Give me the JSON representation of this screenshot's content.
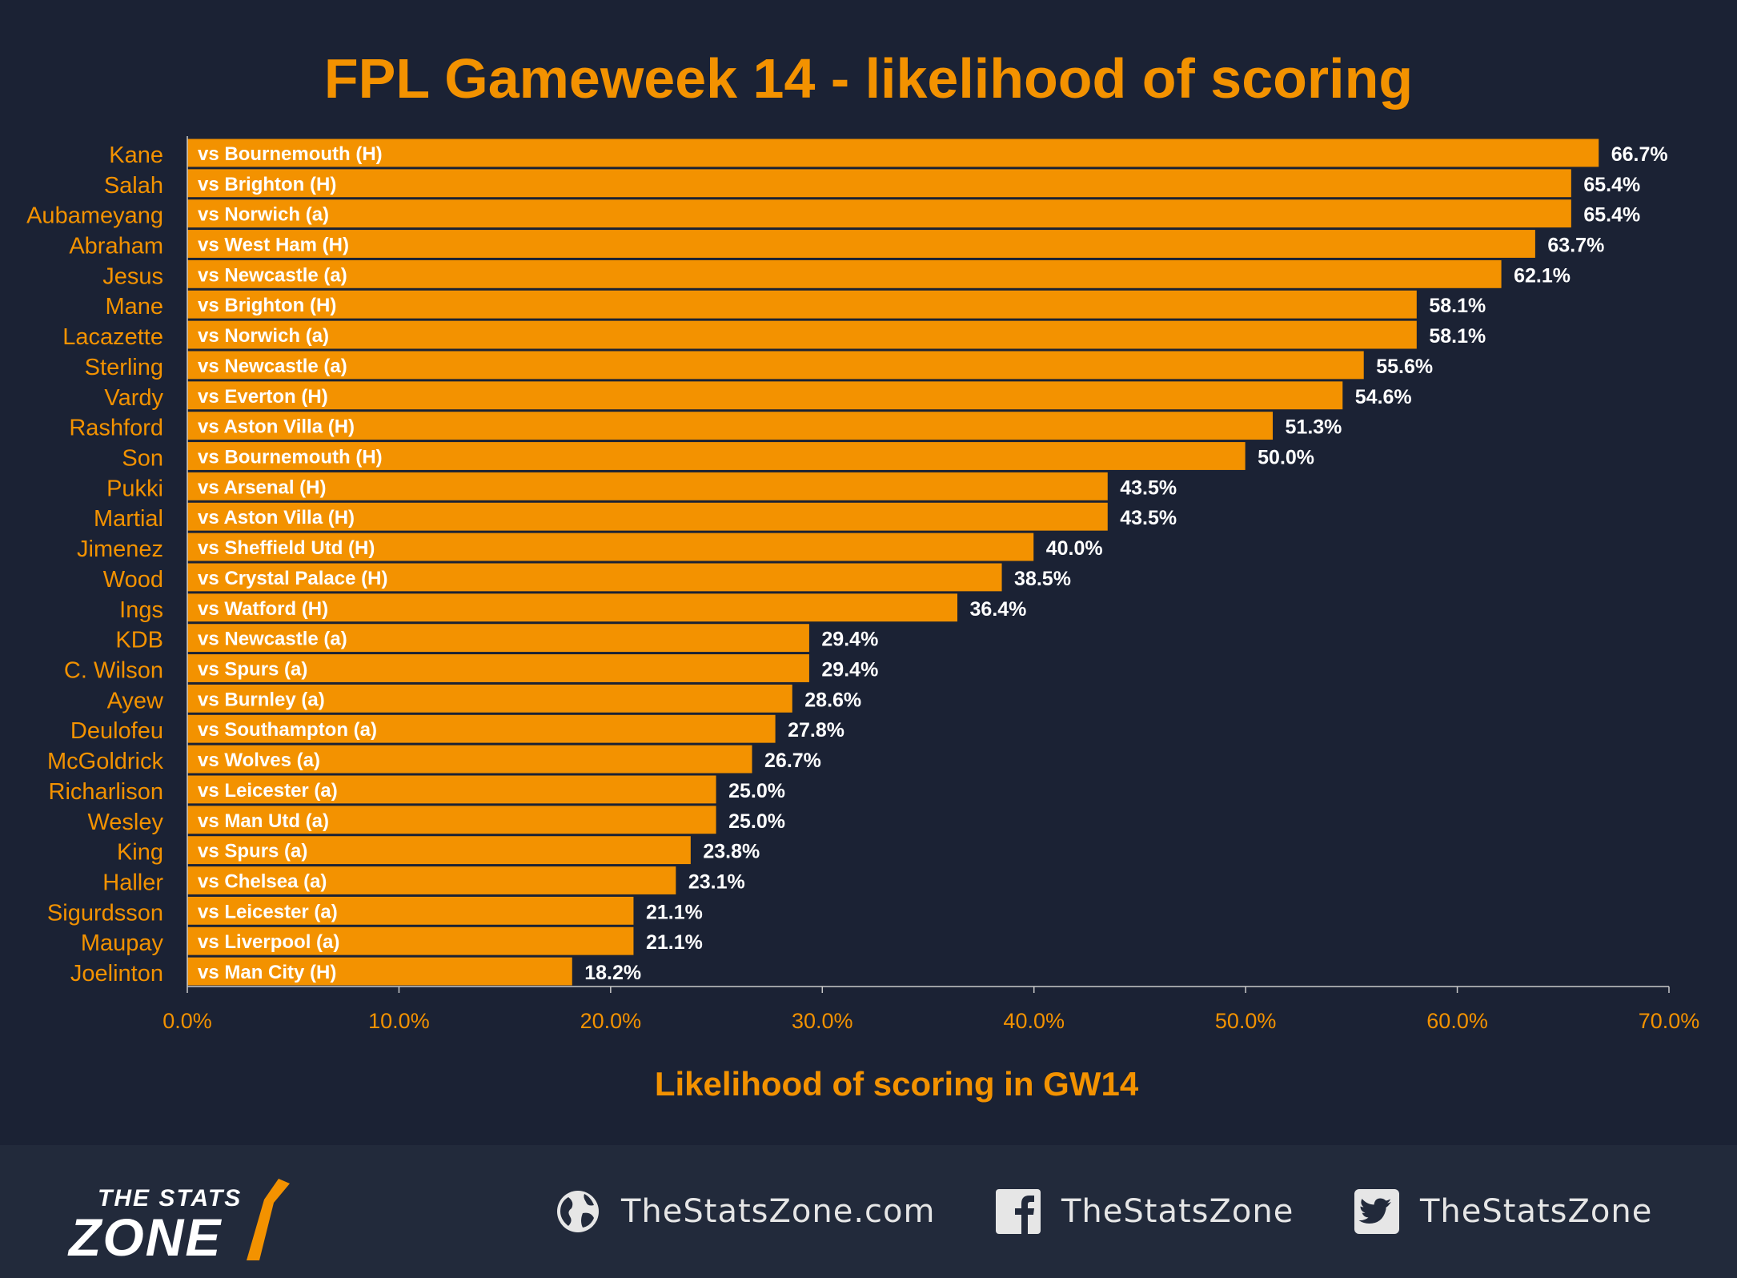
{
  "chart_data": {
    "type": "bar",
    "orientation": "horizontal",
    "title": "FPL Gameweek 14 - likelihood of scoring",
    "xlabel": "Likelihood of scoring in GW14",
    "ylabel": "",
    "xlim": [
      0,
      70
    ],
    "x_ticks": [
      "0.0%",
      "10.0%",
      "20.0%",
      "30.0%",
      "40.0%",
      "50.0%",
      "60.0%",
      "70.0%"
    ],
    "grid": false,
    "colors": {
      "bar": "#f39200",
      "title": "#f39200",
      "labels": "#f39200",
      "value_labels": "#ffffff"
    },
    "categories": [
      "Kane",
      "Salah",
      "Aubameyang",
      "Abraham",
      "Jesus",
      "Mane",
      "Lacazette",
      "Sterling",
      "Vardy",
      "Rashford",
      "Son",
      "Pukki",
      "Martial",
      "Jimenez",
      "Wood",
      "Ings",
      "KDB",
      "C. Wilson",
      "Ayew",
      "Deulofeu",
      "McGoldrick",
      "Richarlison",
      "Wesley",
      "King",
      "Haller",
      "Sigurdsson",
      "Maupay",
      "Joelinton"
    ],
    "fixtures": [
      "vs Bournemouth (H)",
      "vs Brighton (H)",
      "vs Norwich (a)",
      "vs West Ham (H)",
      "vs Newcastle (a)",
      "vs Brighton (H)",
      "vs Norwich (a)",
      "vs Newcastle (a)",
      "vs Everton (H)",
      "vs Aston Villa (H)",
      "vs Bournemouth (H)",
      "vs Arsenal (H)",
      "vs Aston Villa (H)",
      "vs Sheffield Utd (H)",
      "vs Crystal Palace (H)",
      "vs Watford (H)",
      "vs Newcastle (a)",
      "vs Spurs (a)",
      "vs Burnley (a)",
      "vs Southampton (a)",
      "vs Wolves (a)",
      "vs Leicester (a)",
      "vs Man Utd (a)",
      "vs Spurs (a)",
      "vs Chelsea (a)",
      "vs Leicester (a)",
      "vs Liverpool (a)",
      "vs Man City (H)"
    ],
    "values": [
      66.7,
      65.4,
      65.4,
      63.7,
      62.1,
      58.1,
      58.1,
      55.6,
      54.6,
      51.3,
      50.0,
      43.5,
      43.5,
      40.0,
      38.5,
      36.4,
      29.4,
      29.4,
      28.6,
      27.8,
      26.7,
      25.0,
      25.0,
      23.8,
      23.1,
      21.1,
      21.1,
      18.2
    ],
    "value_labels": [
      "66.7%",
      "65.4%",
      "65.4%",
      "63.7%",
      "62.1%",
      "58.1%",
      "58.1%",
      "55.6%",
      "54.6%",
      "51.3%",
      "50.0%",
      "43.5%",
      "43.5%",
      "40.0%",
      "38.5%",
      "36.4%",
      "29.4%",
      "29.4%",
      "28.6%",
      "27.8%",
      "26.7%",
      "25.0%",
      "25.0%",
      "23.8%",
      "23.1%",
      "21.1%",
      "21.1%",
      "18.2%"
    ]
  },
  "footer": {
    "logo_top": "THE STATS",
    "logo_bottom": "ZONE",
    "website": "TheStatsZone.com",
    "facebook": "TheStatsZone",
    "twitter": "TheStatsZone",
    "icons": {
      "website": "globe-icon",
      "facebook": "facebook-icon",
      "twitter": "twitter-icon"
    }
  }
}
